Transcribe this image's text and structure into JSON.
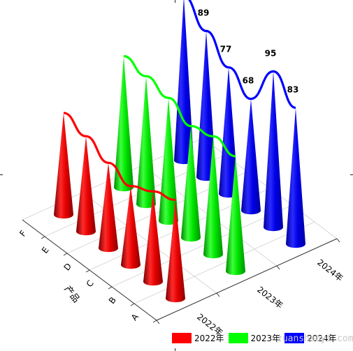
{
  "chart_data": {
    "type": "3d-cone",
    "title": "",
    "categories": [
      "A",
      "B",
      "C",
      "D",
      "E",
      "F"
    ],
    "category_axis_label": "产品",
    "series": [
      {
        "name": "2022年",
        "color": "#ff0000",
        "values": [
          60,
          55,
          48,
          52,
          58,
          62
        ]
      },
      {
        "name": "2023年",
        "color": "#00ff00",
        "values": [
          70,
          72,
          68,
          75,
          78,
          80
        ]
      },
      {
        "name": "2024年",
        "color": "#0000ff",
        "values": [
          83,
          95,
          68,
          77,
          89,
          100
        ]
      }
    ],
    "data_labels_series": "2024年",
    "grid": true,
    "legend_position": "bottom-right"
  },
  "watermark": "zuanshaoyi.com"
}
